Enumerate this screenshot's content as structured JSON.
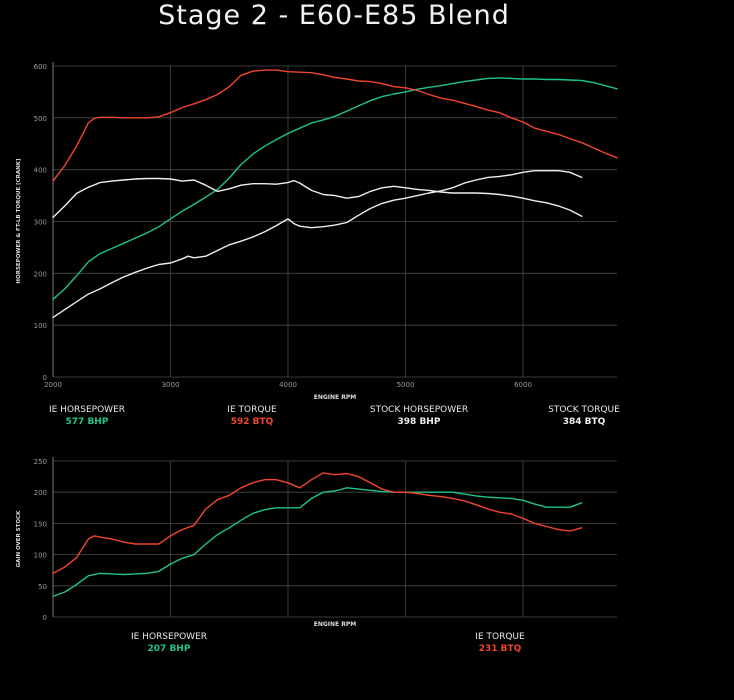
{
  "title": "Stage 2 - E60-E85 Blend",
  "colors": {
    "ie_hp": "#1ec38b",
    "ie_tq": "#f0462a",
    "stock": "#eeeeee",
    "grid": "#4a4a4a",
    "axis": "#9a9a9a"
  },
  "chart_data": [
    {
      "type": "line",
      "xlabel": "ENGINE RPM",
      "ylabel": "HORSEPOWER & FT-LB TORQUE [CRANK]",
      "xlim": [
        2000,
        6800
      ],
      "ylim": [
        0,
        600
      ],
      "xticks": [
        "2000",
        "3000",
        "4000",
        "5000",
        "6000"
      ],
      "yticks": [
        "0",
        "100",
        "200",
        "300",
        "400",
        "500",
        "600"
      ],
      "grid": true,
      "series": [
        {
          "name": "IE HORSEPOWER",
          "peak": "577 BHP",
          "color": "ie_hp",
          "x": [
            2000,
            2100,
            2200,
            2300,
            2400,
            2500,
            2600,
            2700,
            2800,
            2900,
            3000,
            3100,
            3200,
            3300,
            3400,
            3500,
            3600,
            3700,
            3800,
            3900,
            4000,
            4100,
            4200,
            4300,
            4400,
            4500,
            4600,
            4700,
            4800,
            4900,
            5000,
            5100,
            5200,
            5300,
            5400,
            5500,
            5600,
            5700,
            5800,
            5900,
            6000,
            6100,
            6200,
            6300,
            6400,
            6500,
            6600,
            6700,
            6800
          ],
          "y": [
            150,
            170,
            195,
            222,
            238,
            248,
            258,
            268,
            278,
            290,
            305,
            320,
            333,
            347,
            362,
            384,
            410,
            430,
            445,
            458,
            470,
            480,
            490,
            496,
            503,
            513,
            523,
            533,
            541,
            546,
            550,
            555,
            559,
            562,
            566,
            570,
            573,
            576,
            577,
            576,
            575,
            575,
            574,
            574,
            573,
            572,
            568,
            562,
            556
          ]
        },
        {
          "name": "IE TORQUE",
          "peak": "592 BTQ",
          "color": "ie_tq",
          "x": [
            2000,
            2100,
            2200,
            2300,
            2350,
            2400,
            2500,
            2600,
            2700,
            2800,
            2900,
            3000,
            3100,
            3200,
            3300,
            3400,
            3500,
            3600,
            3700,
            3800,
            3900,
            4000,
            4100,
            4200,
            4300,
            4400,
            4500,
            4600,
            4700,
            4800,
            4900,
            5000,
            5100,
            5200,
            5300,
            5400,
            5500,
            5600,
            5700,
            5800,
            5900,
            6000,
            6100,
            6200,
            6300,
            6400,
            6500,
            6600,
            6700,
            6800
          ],
          "y": [
            378,
            408,
            445,
            490,
            499,
            501,
            501,
            500,
            500,
            500,
            502,
            510,
            520,
            527,
            535,
            545,
            560,
            582,
            590,
            592,
            592,
            589,
            588,
            587,
            583,
            578,
            575,
            571,
            570,
            566,
            560,
            558,
            553,
            545,
            538,
            534,
            528,
            522,
            515,
            510,
            500,
            492,
            480,
            474,
            468,
            460,
            452,
            442,
            432,
            423
          ]
        },
        {
          "name": "STOCK HORSEPOWER",
          "peak": "398 BHP",
          "color": "stock",
          "x": [
            2000,
            2100,
            2200,
            2300,
            2400,
            2500,
            2600,
            2700,
            2800,
            2900,
            3000,
            3100,
            3150,
            3200,
            3300,
            3400,
            3500,
            3600,
            3700,
            3800,
            3900,
            4000,
            4050,
            4100,
            4200,
            4300,
            4400,
            4500,
            4600,
            4700,
            4800,
            4900,
            5000,
            5100,
            5200,
            5300,
            5400,
            5500,
            5600,
            5700,
            5800,
            5900,
            6000,
            6100,
            6200,
            6300,
            6400,
            6500
          ],
          "y": [
            115,
            130,
            145,
            160,
            170,
            182,
            193,
            202,
            210,
            217,
            220,
            228,
            233,
            230,
            233,
            244,
            255,
            262,
            270,
            280,
            292,
            305,
            296,
            291,
            288,
            290,
            293,
            298,
            312,
            325,
            335,
            341,
            345,
            350,
            355,
            359,
            365,
            374,
            380,
            385,
            387,
            390,
            395,
            398,
            398,
            398,
            395,
            385
          ]
        },
        {
          "name": "STOCK TORQUE",
          "peak": "384 BTQ",
          "color": "stock",
          "x": [
            2000,
            2100,
            2200,
            2300,
            2400,
            2500,
            2600,
            2700,
            2800,
            2900,
            3000,
            3100,
            3200,
            3300,
            3400,
            3500,
            3600,
            3700,
            3800,
            3900,
            4000,
            4050,
            4100,
            4200,
            4300,
            4400,
            4500,
            4600,
            4700,
            4800,
            4900,
            5000,
            5100,
            5200,
            5300,
            5400,
            5500,
            5600,
            5700,
            5800,
            5900,
            6000,
            6100,
            6200,
            6300,
            6400,
            6500
          ],
          "y": [
            308,
            330,
            354,
            366,
            375,
            378,
            380,
            382,
            383,
            383,
            382,
            378,
            380,
            370,
            358,
            363,
            370,
            373,
            373,
            372,
            375,
            379,
            374,
            360,
            352,
            350,
            345,
            348,
            358,
            365,
            368,
            365,
            362,
            360,
            357,
            355,
            355,
            355,
            354,
            352,
            349,
            345,
            340,
            336,
            330,
            322,
            310
          ]
        }
      ]
    },
    {
      "type": "line",
      "xlabel": "ENGINE RPM",
      "ylabel": "GAIN OVER STOCK",
      "xlim": [
        2000,
        6800
      ],
      "ylim": [
        0,
        250
      ],
      "yticks": [
        "0",
        "50",
        "100",
        "150",
        "200",
        "250"
      ],
      "grid": true,
      "series": [
        {
          "name": "IE HORSEPOWER",
          "peak": "207 BHP",
          "color": "ie_hp",
          "x": [
            2000,
            2100,
            2200,
            2300,
            2400,
            2500,
            2600,
            2700,
            2800,
            2900,
            3000,
            3100,
            3200,
            3300,
            3400,
            3500,
            3600,
            3700,
            3800,
            3900,
            4000,
            4100,
            4200,
            4300,
            4400,
            4500,
            4600,
            4700,
            4800,
            4900,
            5000,
            5100,
            5200,
            5300,
            5400,
            5500,
            5600,
            5700,
            5800,
            5900,
            6000,
            6100,
            6200,
            6300,
            6400,
            6500
          ],
          "y": [
            33,
            40,
            52,
            66,
            70,
            69,
            68,
            69,
            70,
            73,
            85,
            94,
            100,
            117,
            132,
            143,
            155,
            166,
            172,
            175,
            175,
            175,
            190,
            200,
            202,
            207,
            205,
            203,
            201,
            200,
            200,
            200,
            200,
            200,
            200,
            197,
            194,
            192,
            191,
            190,
            187,
            181,
            176,
            176,
            176,
            183
          ]
        },
        {
          "name": "IE TORQUE",
          "peak": "231 BTQ",
          "color": "ie_tq",
          "x": [
            2000,
            2100,
            2200,
            2300,
            2350,
            2400,
            2500,
            2600,
            2700,
            2800,
            2900,
            3000,
            3100,
            3200,
            3300,
            3400,
            3500,
            3600,
            3700,
            3800,
            3900,
            4000,
            4100,
            4200,
            4300,
            4400,
            4500,
            4600,
            4700,
            4800,
            4900,
            5000,
            5100,
            5200,
            5300,
            5400,
            5500,
            5600,
            5700,
            5800,
            5900,
            6000,
            6100,
            6200,
            6300,
            6400,
            6500
          ],
          "y": [
            70,
            80,
            95,
            125,
            130,
            128,
            125,
            120,
            117,
            117,
            117,
            130,
            140,
            147,
            173,
            188,
            195,
            207,
            215,
            220,
            220,
            215,
            207,
            220,
            231,
            228,
            230,
            225,
            215,
            205,
            200,
            200,
            198,
            195,
            193,
            190,
            186,
            180,
            173,
            168,
            165,
            158,
            150,
            145,
            140,
            138,
            143
          ]
        }
      ]
    }
  ],
  "legend_top": [
    {
      "label": "IE HORSEPOWER",
      "value": "577 BHP",
      "color": "ie_hp"
    },
    {
      "label": "IE TORQUE",
      "value": "592 BTQ",
      "color": "ie_tq"
    },
    {
      "label": "STOCK HORSEPOWER",
      "value": "398 BHP",
      "color": "stock"
    },
    {
      "label": "STOCK TORQUE",
      "value": "384 BTQ",
      "color": "stock"
    }
  ],
  "legend_bottom": [
    {
      "label": "IE HORSEPOWER",
      "value": "207 BHP",
      "color": "ie_hp"
    },
    {
      "label": "IE TORQUE",
      "value": "231 BTQ",
      "color": "ie_tq"
    }
  ]
}
